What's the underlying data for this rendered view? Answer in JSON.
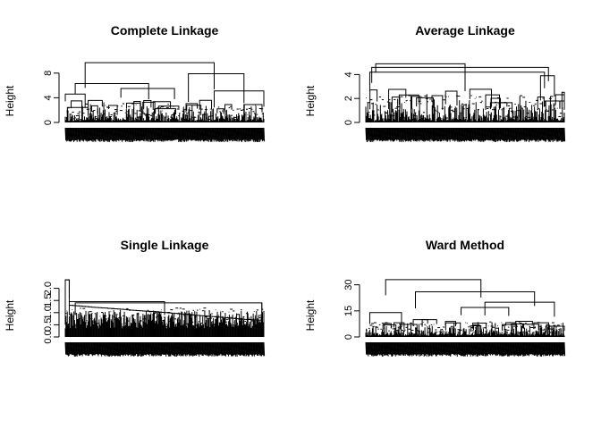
{
  "chart_data": [
    {
      "type": "dendrogram",
      "title": "Complete Linkage",
      "ylabel": "Height",
      "yticks": [
        0,
        4,
        8
      ],
      "ylim": [
        0,
        10
      ],
      "n_leaves": 300,
      "top_merges": [
        {
          "height": 9.7,
          "from": [
            0.1,
            0.75
          ]
        },
        {
          "height": 6.3,
          "from": [
            0.05,
            0.42
          ]
        },
        {
          "height": 7.9,
          "from": [
            0.62,
            0.9
          ]
        },
        {
          "height": 4.6,
          "from": [
            0.0,
            0.1
          ]
        },
        {
          "height": 5.5,
          "from": [
            0.28,
            0.55
          ]
        },
        {
          "height": 5.1,
          "from": [
            0.75,
            1.0
          ]
        }
      ]
    },
    {
      "type": "dendrogram",
      "title": "Average Linkage",
      "ylabel": "Height",
      "yticks": [
        0,
        2,
        4
      ],
      "ylim": [
        0,
        5
      ],
      "n_leaves": 300,
      "top_merges": [
        {
          "height": 4.9,
          "from": [
            0.05,
            0.5
          ]
        },
        {
          "height": 4.6,
          "from": [
            0.03,
            0.92
          ]
        },
        {
          "height": 4.2,
          "from": [
            0.02,
            0.9
          ]
        },
        {
          "height": 3.9,
          "from": [
            0.88,
            0.95
          ]
        }
      ]
    },
    {
      "type": "dendrogram",
      "title": "Single Linkage",
      "ylabel": "Height",
      "yticks": [
        "0.0",
        "0.5",
        "1.0",
        "1.5",
        "2.0"
      ],
      "ylim": [
        0,
        2.5
      ],
      "n_leaves": 300,
      "top_merges": [
        {
          "height": 2.35,
          "from": [
            0.0,
            0.02
          ]
        },
        {
          "height": 1.45,
          "from": [
            0.02,
            0.5
          ]
        },
        {
          "height": 1.4,
          "from": [
            0.05,
            0.99
          ]
        }
      ]
    },
    {
      "type": "dendrogram",
      "title": "Ward Method",
      "ylabel": "Height",
      "yticks": [
        0,
        15,
        30
      ],
      "ylim": [
        0,
        36
      ],
      "n_leaves": 300,
      "top_merges": [
        {
          "height": 33,
          "from": [
            0.1,
            0.58
          ]
        },
        {
          "height": 26,
          "from": [
            0.25,
            0.85
          ]
        },
        {
          "height": 20,
          "from": [
            0.6,
            0.95
          ]
        },
        {
          "height": 17,
          "from": [
            0.48,
            0.72
          ]
        },
        {
          "height": 14,
          "from": [
            0.02,
            0.18
          ]
        }
      ]
    }
  ]
}
